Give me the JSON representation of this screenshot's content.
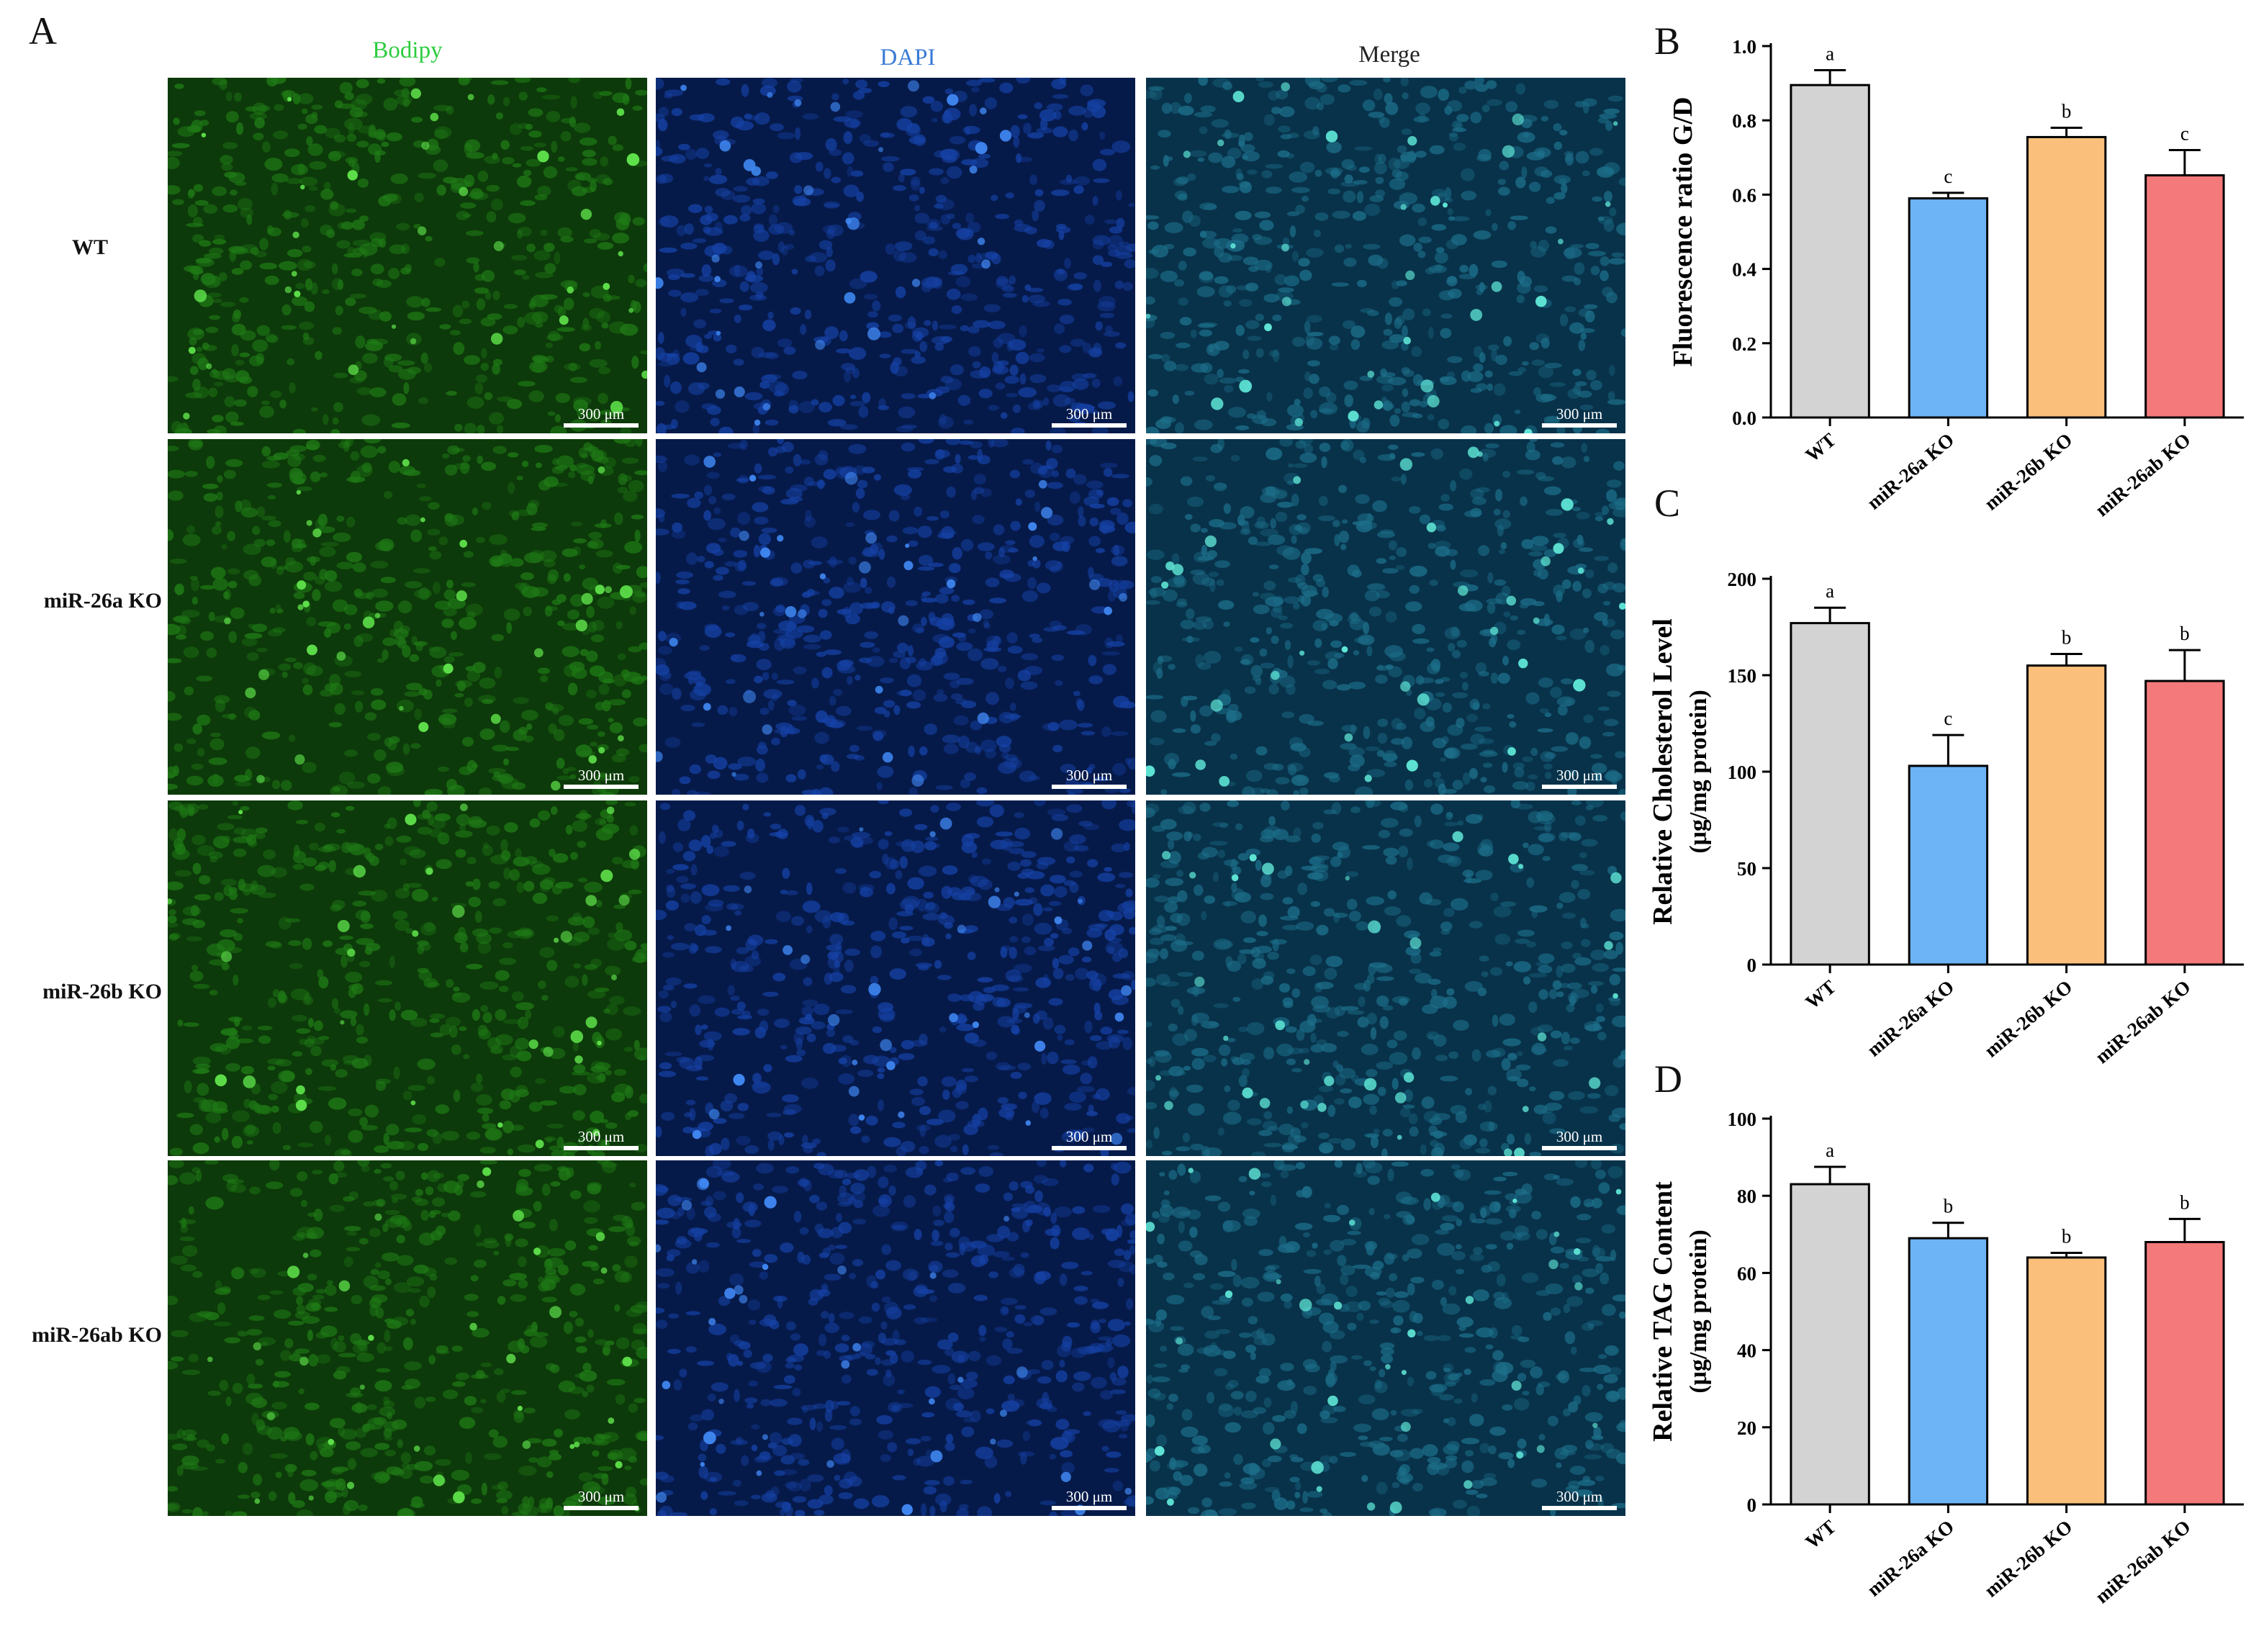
{
  "panel_letters": {
    "A": "A",
    "B": "B",
    "C": "C",
    "D": "D"
  },
  "micrographs": {
    "columns": [
      "Bodipy",
      "DAPI",
      "Merge"
    ],
    "column_colors": [
      "#2ecc40",
      "#3a7bd5",
      "#222222"
    ],
    "rows": [
      "WT",
      "miR-26a KO",
      "miR-26b KO",
      "miR-26ab KO"
    ],
    "scale_bar": "300 μm"
  },
  "bar_colors": [
    "#d3d3d3",
    "#6cb4f5",
    "#f9bf7b",
    "#f4797a"
  ],
  "chart_data": [
    {
      "type": "bar",
      "panel": "B",
      "categories": [
        "WT",
        "miR-26a KO",
        "miR-26b KO",
        "miR-26ab KO"
      ],
      "values": [
        0.895,
        0.59,
        0.755,
        0.652
      ],
      "errors": [
        0.04,
        0.015,
        0.025,
        0.068
      ],
      "letters": [
        "a",
        "c",
        "b",
        "c"
      ],
      "ylabel": "Fluorescence ratio G/D",
      "ylabel2": "",
      "ylim": [
        0,
        1.0
      ],
      "yticks": [
        "0.0",
        "0.2",
        "0.4",
        "0.6",
        "0.8",
        "1.0"
      ]
    },
    {
      "type": "bar",
      "panel": "C",
      "categories": [
        "WT",
        "miR-26a KO",
        "miR-26b KO",
        "miR-26ab KO"
      ],
      "values": [
        177,
        103,
        155,
        147
      ],
      "errors": [
        8,
        16,
        6,
        16
      ],
      "letters": [
        "a",
        "c",
        "b",
        "b"
      ],
      "ylabel": "Relative Cholesterol Level",
      "ylabel2": "(μg/mg protein)",
      "ylim": [
        0,
        200
      ],
      "yticks": [
        "0",
        "50",
        "100",
        "150",
        "200"
      ]
    },
    {
      "type": "bar",
      "panel": "D",
      "categories": [
        "WT",
        "miR-26a KO",
        "miR-26b KO",
        "miR-26ab KO"
      ],
      "values": [
        83,
        69,
        64,
        68
      ],
      "errors": [
        4.5,
        4,
        1.2,
        6
      ],
      "letters": [
        "a",
        "b",
        "b",
        "b"
      ],
      "ylabel": "Relative TAG Content",
      "ylabel2": "(μg/mg protein)",
      "ylim": [
        0,
        100
      ],
      "yticks": [
        "0",
        "20",
        "40",
        "60",
        "80",
        "100"
      ]
    }
  ]
}
